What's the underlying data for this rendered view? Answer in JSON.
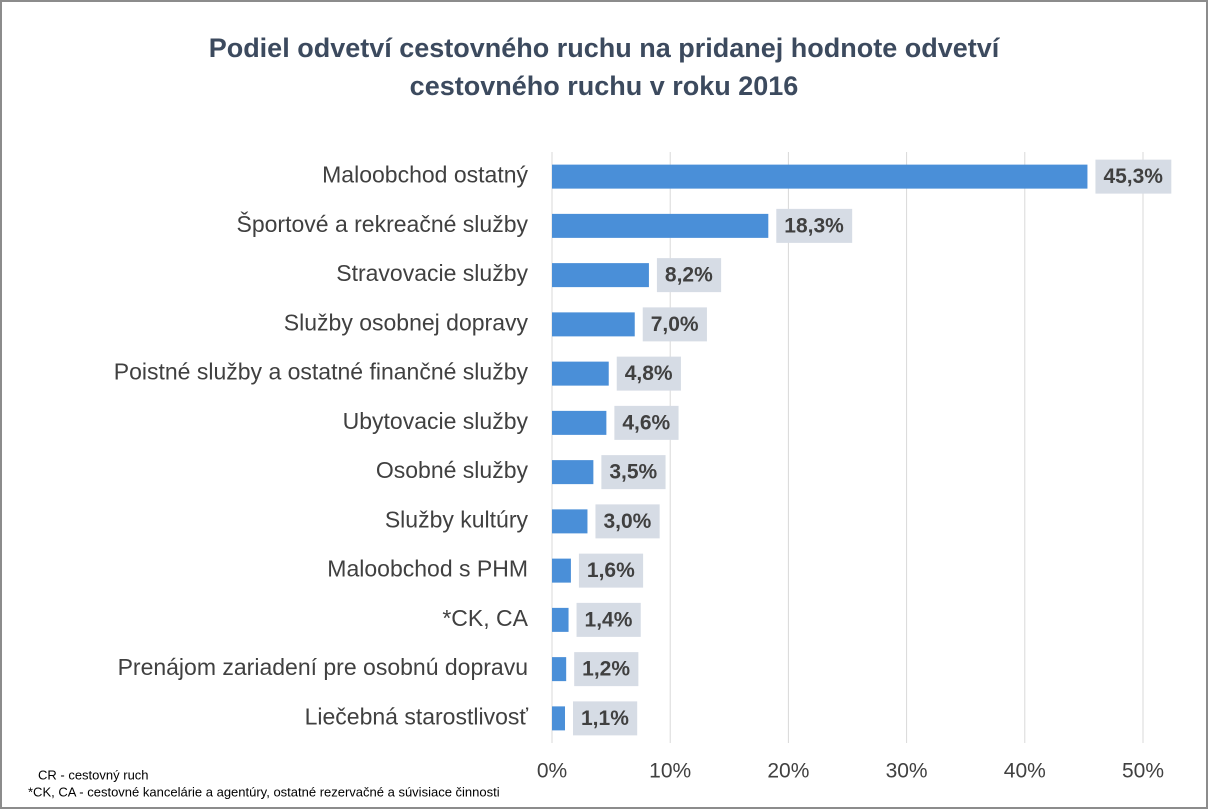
{
  "chart_data": {
    "type": "barh",
    "title": "Podiel odvetví cestovného ruchu na pridanej hodnote odvetví",
    "subtitle": "cestovného ruchu v roku 2016",
    "categories": [
      "Maloobchod ostatný",
      "Športové a rekreačné služby",
      "Stravovacie služby",
      "Služby osobnej dopravy",
      "Poistné služby a ostatné finančné služby",
      "Ubytovacie služby",
      "Osobné služby",
      "Služby kultúry",
      "Maloobchod s PHM",
      "*CK, CA",
      "Prenájom zariadení pre osobnú dopravu",
      "Liečebná starostlivosť"
    ],
    "values": [
      45.3,
      18.3,
      8.2,
      7.0,
      4.8,
      4.6,
      3.5,
      3.0,
      1.6,
      1.4,
      1.2,
      1.1
    ],
    "value_labels": [
      "45,3%",
      "18,3%",
      "8,2%",
      "7,0%",
      "4,8%",
      "4,6%",
      "3,5%",
      "3,0%",
      "1,6%",
      "1,4%",
      "1,2%",
      "1,1%"
    ],
    "color": "#4a8fd8",
    "xlim": [
      0,
      50
    ],
    "xticks": [
      {
        "value": 0,
        "label": "0%"
      },
      {
        "value": 10,
        "label": "10%"
      },
      {
        "value": 20,
        "label": "20%"
      },
      {
        "value": 30,
        "label": "30%"
      },
      {
        "value": 40,
        "label": "40%"
      },
      {
        "value": 50,
        "label": "50%"
      }
    ],
    "grid": true,
    "annotations": [
      "CR - cestovný ruch",
      "*CK, CA - cestovné kancelárie a agentúry, ostatné rezervačné a súvisiace činnosti"
    ]
  }
}
